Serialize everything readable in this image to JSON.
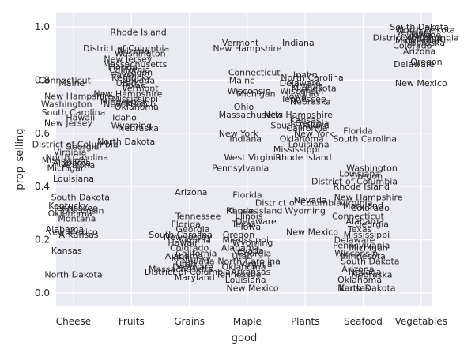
{
  "chart_data": {
    "type": "scatter",
    "title": "",
    "xlabel": "good",
    "ylabel": "prop_selling",
    "categories": [
      "Cheese",
      "Fruits",
      "Grains",
      "Maple",
      "Plants",
      "Seafood",
      "Vegetables"
    ],
    "yticks": [
      "0.0",
      "0.2",
      "0.4",
      "0.6",
      "0.8",
      "1.0"
    ],
    "ylim": [
      -0.04,
      1.04
    ],
    "grid": true,
    "background": "#eaeaf2",
    "markers": "text labels only",
    "points": [
      {
        "good": "Cheese",
        "state": "Connecticut",
        "prop_selling": 0.8
      },
      {
        "good": "Cheese",
        "state": "Maine",
        "prop_selling": 0.79
      },
      {
        "good": "Cheese",
        "state": "New Hampshire",
        "prop_selling": 0.74
      },
      {
        "good": "Cheese",
        "state": "Washington",
        "prop_selling": 0.71
      },
      {
        "good": "Cheese",
        "state": "South Carolina",
        "prop_selling": 0.68
      },
      {
        "good": "Cheese",
        "state": "Hawaii",
        "prop_selling": 0.66
      },
      {
        "good": "Cheese",
        "state": "New Jersey",
        "prop_selling": 0.64
      },
      {
        "good": "Cheese",
        "state": "District of Columbia",
        "prop_selling": 0.56
      },
      {
        "good": "Cheese",
        "state": "Georgia",
        "prop_selling": 0.55
      },
      {
        "good": "Cheese",
        "state": "Virginia",
        "prop_selling": 0.53
      },
      {
        "good": "Cheese",
        "state": "North Carolina",
        "prop_selling": 0.51
      },
      {
        "good": "Cheese",
        "state": "Mississippi",
        "prop_selling": 0.5
      },
      {
        "good": "Cheese",
        "state": "Alabama",
        "prop_selling": 0.49
      },
      {
        "good": "Cheese",
        "state": "Arizona",
        "prop_selling": 0.48
      },
      {
        "good": "Cheese",
        "state": "Michigan",
        "prop_selling": 0.47
      },
      {
        "good": "Cheese",
        "state": "Louisiana",
        "prop_selling": 0.43
      },
      {
        "good": "Cheese",
        "state": "South Dakota",
        "prop_selling": 0.36
      },
      {
        "good": "Cheese",
        "state": "Kentucky",
        "prop_selling": 0.33
      },
      {
        "good": "Cheese",
        "state": "Tennessee",
        "prop_selling": 0.32
      },
      {
        "good": "Cheese",
        "state": "Wisconsin",
        "prop_selling": 0.31
      },
      {
        "good": "Cheese",
        "state": "Oklahoma",
        "prop_selling": 0.3
      },
      {
        "good": "Cheese",
        "state": "Montana",
        "prop_selling": 0.28
      },
      {
        "good": "Cheese",
        "state": "Alabama",
        "prop_selling": 0.24
      },
      {
        "good": "Cheese",
        "state": "New Mexico",
        "prop_selling": 0.23
      },
      {
        "good": "Cheese",
        "state": "Arkansas",
        "prop_selling": 0.22
      },
      {
        "good": "Cheese",
        "state": "Kansas",
        "prop_selling": 0.16
      },
      {
        "good": "Cheese",
        "state": "North Dakota",
        "prop_selling": 0.07
      },
      {
        "good": "Fruits",
        "state": "Rhode Island",
        "prop_selling": 0.98
      },
      {
        "good": "Fruits",
        "state": "District of Columbia",
        "prop_selling": 0.92
      },
      {
        "good": "Fruits",
        "state": "Arizona",
        "prop_selling": 0.91
      },
      {
        "good": "Fruits",
        "state": "Washington",
        "prop_selling": 0.9
      },
      {
        "good": "Fruits",
        "state": "New Jersey",
        "prop_selling": 0.88
      },
      {
        "good": "Fruits",
        "state": "Massachusetts",
        "prop_selling": 0.86
      },
      {
        "good": "Fruits",
        "state": "Florida",
        "prop_selling": 0.85
      },
      {
        "good": "Fruits",
        "state": "California",
        "prop_selling": 0.84
      },
      {
        "good": "Fruits",
        "state": "Oregon",
        "prop_selling": 0.83
      },
      {
        "good": "Fruits",
        "state": "Hawaii",
        "prop_selling": 0.82
      },
      {
        "good": "Fruits",
        "state": "Kentucky",
        "prop_selling": 0.81
      },
      {
        "good": "Fruits",
        "state": "Nevada",
        "prop_selling": 0.8
      },
      {
        "good": "Fruits",
        "state": "Utah",
        "prop_selling": 0.79
      },
      {
        "good": "Fruits",
        "state": "Texas",
        "prop_selling": 0.78
      },
      {
        "good": "Fruits",
        "state": "Vermont",
        "prop_selling": 0.77
      },
      {
        "good": "Fruits",
        "state": "New Hampshire",
        "prop_selling": 0.75
      },
      {
        "good": "Fruits",
        "state": "Mississippi",
        "prop_selling": 0.73
      },
      {
        "good": "Fruits",
        "state": "Minnesota",
        "prop_selling": 0.72
      },
      {
        "good": "Fruits",
        "state": "New Mexico",
        "prop_selling": 0.71
      },
      {
        "good": "Fruits",
        "state": "Oklahoma",
        "prop_selling": 0.7
      },
      {
        "good": "Fruits",
        "state": "Idaho",
        "prop_selling": 0.66
      },
      {
        "good": "Fruits",
        "state": "Wyoming",
        "prop_selling": 0.63
      },
      {
        "good": "Fruits",
        "state": "Nebraska",
        "prop_selling": 0.62
      },
      {
        "good": "Fruits",
        "state": "North Dakota",
        "prop_selling": 0.57
      },
      {
        "good": "Grains",
        "state": "Arizona",
        "prop_selling": 0.38
      },
      {
        "good": "Grains",
        "state": "Tennessee",
        "prop_selling": 0.29
      },
      {
        "good": "Grains",
        "state": "Florida",
        "prop_selling": 0.26
      },
      {
        "good": "Grains",
        "state": "Georgia",
        "prop_selling": 0.24
      },
      {
        "good": "Grains",
        "state": "South Carolina",
        "prop_selling": 0.22
      },
      {
        "good": "Grains",
        "state": "New Jersey",
        "prop_selling": 0.21
      },
      {
        "good": "Grains",
        "state": "Virginia",
        "prop_selling": 0.2
      },
      {
        "good": "Grains",
        "state": "Hawaii",
        "prop_selling": 0.19
      },
      {
        "good": "Grains",
        "state": "Colorado",
        "prop_selling": 0.17
      },
      {
        "good": "Grains",
        "state": "California",
        "prop_selling": 0.15
      },
      {
        "good": "Grains",
        "state": "Alabama",
        "prop_selling": 0.14
      },
      {
        "good": "Grains",
        "state": "Kentucky",
        "prop_selling": 0.13
      },
      {
        "good": "Grains",
        "state": "Nevada",
        "prop_selling": 0.12
      },
      {
        "good": "Grains",
        "state": "Utah",
        "prop_selling": 0.11
      },
      {
        "good": "Grains",
        "state": "Delaware",
        "prop_selling": 0.1
      },
      {
        "good": "Grains",
        "state": "Massachusetts",
        "prop_selling": 0.09
      },
      {
        "good": "Grains",
        "state": "District of Columbia",
        "prop_selling": 0.08
      },
      {
        "good": "Grains",
        "state": "Maryland",
        "prop_selling": 0.06
      },
      {
        "good": "Maple",
        "state": "Vermont",
        "prop_selling": 0.94
      },
      {
        "good": "Maple",
        "state": "New Hampshire",
        "prop_selling": 0.92
      },
      {
        "good": "Maple",
        "state": "Connecticut",
        "prop_selling": 0.83
      },
      {
        "good": "Maple",
        "state": "Maine",
        "prop_selling": 0.8
      },
      {
        "good": "Maple",
        "state": "Wisconsin",
        "prop_selling": 0.76
      },
      {
        "good": "Maple",
        "state": "Michigan",
        "prop_selling": 0.75
      },
      {
        "good": "Maple",
        "state": "Ohio",
        "prop_selling": 0.7
      },
      {
        "good": "Maple",
        "state": "Massachusetts",
        "prop_selling": 0.67
      },
      {
        "good": "Maple",
        "state": "New York",
        "prop_selling": 0.6
      },
      {
        "good": "Maple",
        "state": "Indiana",
        "prop_selling": 0.58
      },
      {
        "good": "Maple",
        "state": "West Virginia",
        "prop_selling": 0.51
      },
      {
        "good": "Maple",
        "state": "Pennsylvania",
        "prop_selling": 0.47
      },
      {
        "good": "Maple",
        "state": "Florida",
        "prop_selling": 0.37
      },
      {
        "good": "Maple",
        "state": "Rhode Island",
        "prop_selling": 0.31
      },
      {
        "good": "Maple",
        "state": "Kansas",
        "prop_selling": 0.31
      },
      {
        "good": "Maple",
        "state": "Illinois",
        "prop_selling": 0.29
      },
      {
        "good": "Maple",
        "state": "Delaware",
        "prop_selling": 0.27
      },
      {
        "good": "Maple",
        "state": "Texas",
        "prop_selling": 0.26
      },
      {
        "good": "Maple",
        "state": "Iowa",
        "prop_selling": 0.25
      },
      {
        "good": "Maple",
        "state": "Oregon",
        "prop_selling": 0.22
      },
      {
        "good": "Maple",
        "state": "Mississippi",
        "prop_selling": 0.2
      },
      {
        "good": "Maple",
        "state": "Wyoming",
        "prop_selling": 0.19
      },
      {
        "good": "Maple",
        "state": "Alabama",
        "prop_selling": 0.17
      },
      {
        "good": "Maple",
        "state": "Nevada",
        "prop_selling": 0.16
      },
      {
        "good": "Maple",
        "state": "Georgia",
        "prop_selling": 0.15
      },
      {
        "good": "Maple",
        "state": "Utah",
        "prop_selling": 0.14
      },
      {
        "good": "Maple",
        "state": "North Carolina",
        "prop_selling": 0.12
      },
      {
        "good": "Maple",
        "state": "Virginia",
        "prop_selling": 0.11
      },
      {
        "good": "Maple",
        "state": "Oklahoma",
        "prop_selling": 0.1
      },
      {
        "good": "Maple",
        "state": "Arkansas",
        "prop_selling": 0.08
      },
      {
        "good": "Maple",
        "state": "Tennessee",
        "prop_selling": 0.07
      },
      {
        "good": "Maple",
        "state": "Louisiana",
        "prop_selling": 0.05
      },
      {
        "good": "Maple",
        "state": "New Mexico",
        "prop_selling": 0.02
      },
      {
        "good": "Plants",
        "state": "Indiana",
        "prop_selling": 0.94
      },
      {
        "good": "Plants",
        "state": "Idaho",
        "prop_selling": 0.82
      },
      {
        "good": "Plants",
        "state": "North Carolina",
        "prop_selling": 0.81
      },
      {
        "good": "Plants",
        "state": "Delaware",
        "prop_selling": 0.79
      },
      {
        "good": "Plants",
        "state": "Virginia",
        "prop_selling": 0.78
      },
      {
        "good": "Plants",
        "state": "Minnesota",
        "prop_selling": 0.77
      },
      {
        "good": "Plants",
        "state": "Wisconsin",
        "prop_selling": 0.76
      },
      {
        "good": "Plants",
        "state": "Ohio",
        "prop_selling": 0.75
      },
      {
        "good": "Plants",
        "state": "Iowa",
        "prop_selling": 0.74
      },
      {
        "good": "Plants",
        "state": "Tennessee",
        "prop_selling": 0.73
      },
      {
        "good": "Plants",
        "state": "Nebraska",
        "prop_selling": 0.72
      },
      {
        "good": "Plants",
        "state": "New Hampshire",
        "prop_selling": 0.67
      },
      {
        "good": "Plants",
        "state": "Kansas",
        "prop_selling": 0.65
      },
      {
        "good": "Plants",
        "state": "Georgia",
        "prop_selling": 0.64
      },
      {
        "good": "Plants",
        "state": "South Dakota",
        "prop_selling": 0.63
      },
      {
        "good": "Plants",
        "state": "California",
        "prop_selling": 0.62
      },
      {
        "good": "Plants",
        "state": "New York",
        "prop_selling": 0.6
      },
      {
        "good": "Plants",
        "state": "Oklahoma",
        "prop_selling": 0.58
      },
      {
        "good": "Plants",
        "state": "Louisiana",
        "prop_selling": 0.56
      },
      {
        "good": "Plants",
        "state": "Mississippi",
        "prop_selling": 0.54
      },
      {
        "good": "Plants",
        "state": "Rhode Island",
        "prop_selling": 0.51
      },
      {
        "good": "Plants",
        "state": "Nevada",
        "prop_selling": 0.35
      },
      {
        "good": "Plants",
        "state": "District of Columbia",
        "prop_selling": 0.34
      },
      {
        "good": "Plants",
        "state": "Wyoming",
        "prop_selling": 0.31
      },
      {
        "good": "Plants",
        "state": "New Mexico",
        "prop_selling": 0.23
      },
      {
        "good": "Seafood",
        "state": "Florida",
        "prop_selling": 0.61
      },
      {
        "good": "Seafood",
        "state": "South Carolina",
        "prop_selling": 0.58
      },
      {
        "good": "Seafood",
        "state": "Washington",
        "prop_selling": 0.47
      },
      {
        "good": "Seafood",
        "state": "Louisiana",
        "prop_selling": 0.45
      },
      {
        "good": "Seafood",
        "state": "Oregon",
        "prop_selling": 0.44
      },
      {
        "good": "Seafood",
        "state": "District of Columbia",
        "prop_selling": 0.42
      },
      {
        "good": "Seafood",
        "state": "Rhode Island",
        "prop_selling": 0.4
      },
      {
        "good": "Seafood",
        "state": "New Hampshire",
        "prop_selling": 0.36
      },
      {
        "good": "Seafood",
        "state": "Virginia",
        "prop_selling": 0.34
      },
      {
        "good": "Seafood",
        "state": "Maryland",
        "prop_selling": 0.33
      },
      {
        "good": "Seafood",
        "state": "Colorado",
        "prop_selling": 0.32
      },
      {
        "good": "Seafood",
        "state": "Connecticut",
        "prop_selling": 0.29
      },
      {
        "good": "Seafood",
        "state": "Alabama",
        "prop_selling": 0.27
      },
      {
        "good": "Seafood",
        "state": "Georgia",
        "prop_selling": 0.26
      },
      {
        "good": "Seafood",
        "state": "Texas",
        "prop_selling": 0.24
      },
      {
        "good": "Seafood",
        "state": "Mississippi",
        "prop_selling": 0.22
      },
      {
        "good": "Seafood",
        "state": "Delaware",
        "prop_selling": 0.2
      },
      {
        "good": "Seafood",
        "state": "Pennsylvania",
        "prop_selling": 0.18
      },
      {
        "good": "Seafood",
        "state": "Michigan",
        "prop_selling": 0.17
      },
      {
        "good": "Seafood",
        "state": "Wisconsin",
        "prop_selling": 0.15
      },
      {
        "good": "Seafood",
        "state": "Minnesota",
        "prop_selling": 0.14
      },
      {
        "good": "Seafood",
        "state": "South Dakota",
        "prop_selling": 0.12
      },
      {
        "good": "Seafood",
        "state": "Arizona",
        "prop_selling": 0.09
      },
      {
        "good": "Seafood",
        "state": "Nevada",
        "prop_selling": 0.08
      },
      {
        "good": "Seafood",
        "state": "Nebraska",
        "prop_selling": 0.07
      },
      {
        "good": "Seafood",
        "state": "Oklahoma",
        "prop_selling": 0.05
      },
      {
        "good": "Seafood",
        "state": "North Dakota",
        "prop_selling": 0.02
      },
      {
        "good": "Seafood",
        "state": "Kansas",
        "prop_selling": 0.02
      },
      {
        "good": "Vegetables",
        "state": "South Dakota",
        "prop_selling": 1.0
      },
      {
        "good": "Vegetables",
        "state": "North Dakota",
        "prop_selling": 0.99
      },
      {
        "good": "Vegetables",
        "state": "Vermont",
        "prop_selling": 0.98
      },
      {
        "good": "Vegetables",
        "state": "Iowa",
        "prop_selling": 0.97
      },
      {
        "good": "Vegetables",
        "state": "Maine",
        "prop_selling": 0.97
      },
      {
        "good": "Vegetables",
        "state": "District of Columbia",
        "prop_selling": 0.96
      },
      {
        "good": "Vegetables",
        "state": "Montana",
        "prop_selling": 0.96
      },
      {
        "good": "Vegetables",
        "state": "Wisconsin",
        "prop_selling": 0.95
      },
      {
        "good": "Vegetables",
        "state": "Minnesota",
        "prop_selling": 0.95
      },
      {
        "good": "Vegetables",
        "state": "Nebraska",
        "prop_selling": 0.94
      },
      {
        "good": "Vegetables",
        "state": "Colorado",
        "prop_selling": 0.93
      },
      {
        "good": "Vegetables",
        "state": "Arizona",
        "prop_selling": 0.91
      },
      {
        "good": "Vegetables",
        "state": "Oregon",
        "prop_selling": 0.87
      },
      {
        "good": "Vegetables",
        "state": "Delaware",
        "prop_selling": 0.86
      },
      {
        "good": "Vegetables",
        "state": "New Mexico",
        "prop_selling": 0.79
      }
    ]
  }
}
